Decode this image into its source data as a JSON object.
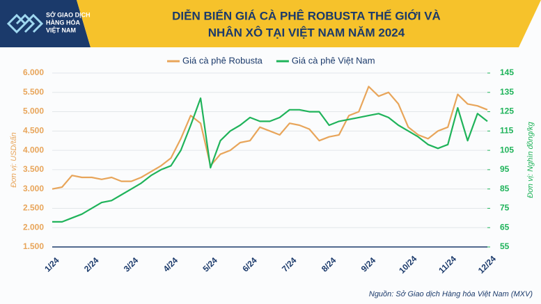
{
  "logo": {
    "lines": [
      "SỞ GIAO DỊCH",
      "HÀNG HÓA",
      "VIỆT NAM"
    ]
  },
  "chart_data": {
    "type": "line",
    "title": [
      "DIỄN BIẾN GIÁ CÀ PHÊ ROBUSTA THẾ GIỚI VÀ",
      "NHÂN XÔ TẠI VIỆT NAM NĂM 2024"
    ],
    "ylabel": "Đơn vị: USD/tấn",
    "y2label": "Đơn vị: Nghìn đồng/kg",
    "source": "Nguồn: Sở Giao dịch Hàng hóa Việt Nam (MXV)",
    "legend": "top",
    "categories": [
      "1/24",
      null,
      null,
      null,
      "2/24",
      null,
      null,
      null,
      "3/24",
      null,
      null,
      null,
      "4/24",
      null,
      null,
      null,
      "5/24",
      null,
      null,
      null,
      "6/24",
      null,
      null,
      null,
      "7/24",
      null,
      null,
      null,
      "8/24",
      null,
      null,
      null,
      "9/24",
      null,
      null,
      null,
      "10/24",
      null,
      null,
      null,
      "11/24",
      null,
      null,
      null,
      "12/24"
    ],
    "series": [
      {
        "name": "Giá cà phê Robusta",
        "color": "#e8a55a",
        "axis": "y",
        "values": [
          3000,
          3050,
          3350,
          3300,
          3300,
          3250,
          3300,
          3200,
          3200,
          3300,
          3450,
          3600,
          3800,
          4300,
          4900,
          4700,
          3600,
          3900,
          4000,
          4200,
          4250,
          4600,
          4500,
          4400,
          4700,
          4650,
          4550,
          4250,
          4350,
          4400,
          4900,
          5000,
          5650,
          5400,
          5500,
          5200,
          4600,
          4400,
          4300,
          4500,
          4600,
          5450,
          5200,
          5150,
          5050
        ]
      },
      {
        "name": "Giá cà phê Việt Nam",
        "color": "#1fb35a",
        "axis": "y2",
        "values": [
          68,
          68,
          70,
          72,
          75,
          78,
          79,
          82,
          85,
          88,
          92,
          95,
          97,
          105,
          118,
          132,
          96,
          110,
          115,
          118,
          122,
          120,
          120,
          122,
          126,
          126,
          125,
          125,
          118,
          120,
          121,
          122,
          123,
          124,
          122,
          118,
          115,
          112,
          108,
          106,
          108,
          127,
          110,
          124,
          120
        ]
      }
    ],
    "ylim": [
      1500,
      6000
    ],
    "yticks": [
      {
        "value": 1500,
        "label": "1.500"
      },
      {
        "value": 2000,
        "label": "2.000"
      },
      {
        "value": 2500,
        "label": "2.500"
      },
      {
        "value": 3000,
        "label": "3.000"
      },
      {
        "value": 3500,
        "label": "3.500"
      },
      {
        "value": 4000,
        "label": "4.000"
      },
      {
        "value": 4500,
        "label": "4.500"
      },
      {
        "value": 5000,
        "label": "5.000"
      },
      {
        "value": 5500,
        "label": "5.500"
      },
      {
        "value": 6000,
        "label": "6.000"
      }
    ],
    "y2lim": [
      55,
      145
    ],
    "y2ticks": [
      55,
      65,
      75,
      85,
      95,
      105,
      115,
      125,
      135,
      145
    ],
    "grid": true
  }
}
